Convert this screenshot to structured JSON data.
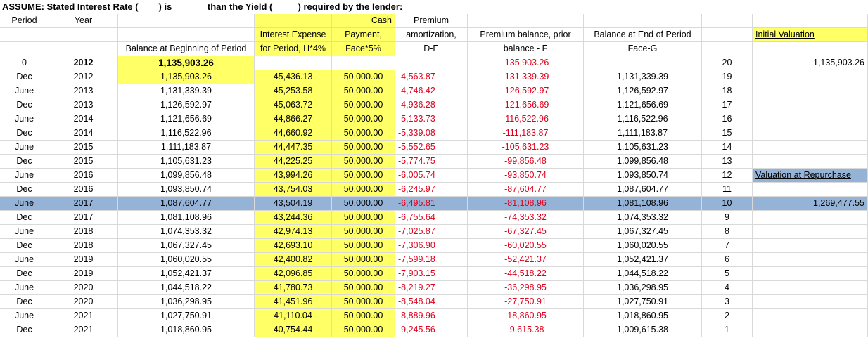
{
  "title": "ASSUME: Stated Interest Rate (____) is ______ than the Yield (_____) required by the lender: ________",
  "headers": {
    "period": "Period",
    "year": "Year",
    "balance_begin": "Balance at Beginning of Period",
    "interest_1": "Interest Expense",
    "interest_2": "for Period, H*4%",
    "cash_0": "Cash",
    "cash_1": "Payment,",
    "cash_2": "Face*5%",
    "prem_0": "Premium",
    "prem_1": "amortization,",
    "prem_2": "D-E",
    "prembal_1": "Premium balance, prior",
    "prembal_2": "balance - F",
    "end_1": "Balance at End of Period",
    "end_2": "Face-G",
    "initial_valuation": "Initial Valuation"
  },
  "row0": {
    "period": "0",
    "year": "2012",
    "balance": "1,135,903.26",
    "prem_balance": "-135,903.26",
    "count": "20",
    "initial_value": "1,135,903.26"
  },
  "rows": [
    [
      "Dec",
      "2012",
      "1,135,903.26",
      "45,436.13",
      "50,000.00",
      "-4,563.87",
      "-131,339.39",
      "1,131,339.39",
      "19"
    ],
    [
      "June",
      "2013",
      "1,131,339.39",
      "45,253.58",
      "50,000.00",
      "-4,746.42",
      "-126,592.97",
      "1,126,592.97",
      "18"
    ],
    [
      "Dec",
      "2013",
      "1,126,592.97",
      "45,063.72",
      "50,000.00",
      "-4,936.28",
      "-121,656.69",
      "1,121,656.69",
      "17"
    ],
    [
      "June",
      "2014",
      "1,121,656.69",
      "44,866.27",
      "50,000.00",
      "-5,133.73",
      "-116,522.96",
      "1,116,522.96",
      "16"
    ],
    [
      "Dec",
      "2014",
      "1,116,522.96",
      "44,660.92",
      "50,000.00",
      "-5,339.08",
      "-111,183.87",
      "1,111,183.87",
      "15"
    ],
    [
      "June",
      "2015",
      "1,111,183.87",
      "44,447.35",
      "50,000.00",
      "-5,552.65",
      "-105,631.23",
      "1,105,631.23",
      "14"
    ],
    [
      "Dec",
      "2015",
      "1,105,631.23",
      "44,225.25",
      "50,000.00",
      "-5,774.75",
      "-99,856.48",
      "1,099,856.48",
      "13"
    ],
    [
      "June",
      "2016",
      "1,099,856.48",
      "43,994.26",
      "50,000.00",
      "-6,005.74",
      "-93,850.74",
      "1,093,850.74",
      "12"
    ],
    [
      "Dec",
      "2016",
      "1,093,850.74",
      "43,754.03",
      "50,000.00",
      "-6,245.97",
      "-87,604.77",
      "1,087,604.77",
      "11"
    ],
    [
      "June",
      "2017",
      "1,087,604.77",
      "43,504.19",
      "50,000.00",
      "-6,495.81",
      "-81,108.96",
      "1,081,108.96",
      "10"
    ],
    [
      "Dec",
      "2017",
      "1,081,108.96",
      "43,244.36",
      "50,000.00",
      "-6,755.64",
      "-74,353.32",
      "1,074,353.32",
      "9"
    ],
    [
      "June",
      "2018",
      "1,074,353.32",
      "42,974.13",
      "50,000.00",
      "-7,025.87",
      "-67,327.45",
      "1,067,327.45",
      "8"
    ],
    [
      "Dec",
      "2018",
      "1,067,327.45",
      "42,693.10",
      "50,000.00",
      "-7,306.90",
      "-60,020.55",
      "1,060,020.55",
      "7"
    ],
    [
      "June",
      "2019",
      "1,060,020.55",
      "42,400.82",
      "50,000.00",
      "-7,599.18",
      "-52,421.37",
      "1,052,421.37",
      "6"
    ],
    [
      "Dec",
      "2019",
      "1,052,421.37",
      "42,096.85",
      "50,000.00",
      "-7,903.15",
      "-44,518.22",
      "1,044,518.22",
      "5"
    ],
    [
      "June",
      "2020",
      "1,044,518.22",
      "41,780.73",
      "50,000.00",
      "-8,219.27",
      "-36,298.95",
      "1,036,298.95",
      "4"
    ],
    [
      "Dec",
      "2020",
      "1,036,298.95",
      "41,451.96",
      "50,000.00",
      "-8,548.04",
      "-27,750.91",
      "1,027,750.91",
      "3"
    ],
    [
      "June",
      "2021",
      "1,027,750.91",
      "41,110.04",
      "50,000.00",
      "-8,889.96",
      "-18,860.95",
      "1,018,860.95",
      "2"
    ],
    [
      "Dec",
      "2021",
      "1,018,860.95",
      "40,754.44",
      "50,000.00",
      "-9,245.56",
      "-9,615.38",
      "1,009,615.38",
      "1"
    ]
  ],
  "repurchase": {
    "label": "Valuation at Repurchase",
    "value": "1,269,477.55"
  },
  "colors": {
    "yellow": "#ffff66",
    "highlight": "#95b3d7",
    "negative": "#e0001b"
  }
}
